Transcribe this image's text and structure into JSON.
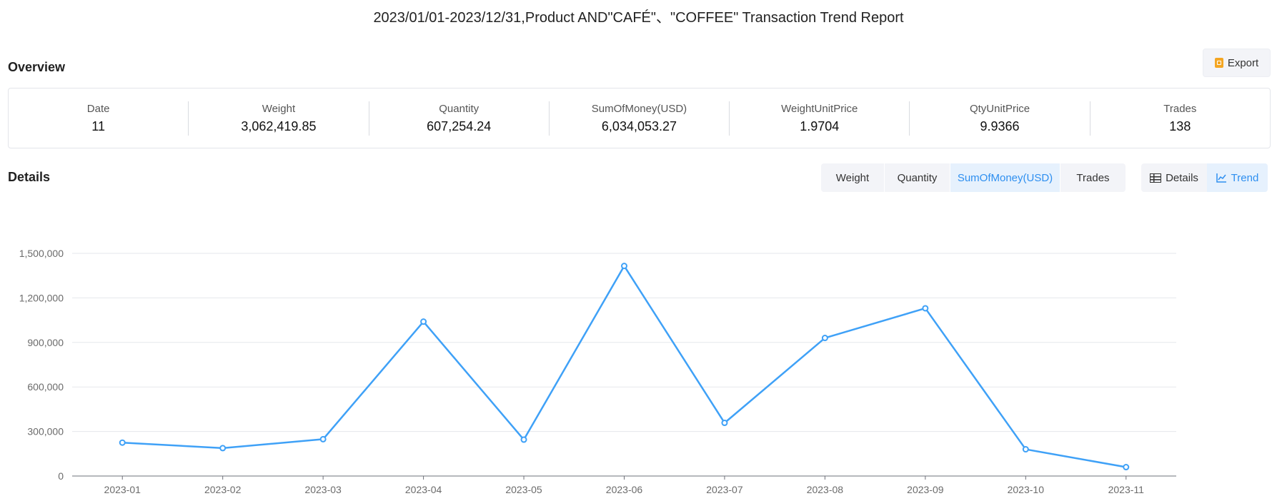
{
  "report": {
    "title": "2023/01/01-2023/12/31,Product AND\"CAFÉ\"、\"COFFEE\" Transaction Trend Report"
  },
  "overview": {
    "title": "Overview",
    "export_label": "Export",
    "export_icon": "document-export-icon",
    "stats": [
      {
        "label": "Date",
        "value": "11"
      },
      {
        "label": "Weight",
        "value": "3,062,419.85"
      },
      {
        "label": "Quantity",
        "value": "607,254.24"
      },
      {
        "label": "SumOfMoney(USD)",
        "value": "6,034,053.27"
      },
      {
        "label": "WeightUnitPrice",
        "value": "1.9704"
      },
      {
        "label": "QtyUnitPrice",
        "value": "9.9366"
      },
      {
        "label": "Trades",
        "value": "138"
      }
    ]
  },
  "details": {
    "title": "Details",
    "metric_tabs": [
      {
        "label": "Weight",
        "active": false
      },
      {
        "label": "Quantity",
        "active": false
      },
      {
        "label": "SumOfMoney(USD)",
        "active": true
      },
      {
        "label": "Trades",
        "active": false
      }
    ],
    "view_tabs": [
      {
        "label": "Details",
        "icon": "table-icon",
        "active": false
      },
      {
        "label": "Trend",
        "icon": "line-chart-icon",
        "active": true
      }
    ]
  },
  "chart_data": {
    "type": "line",
    "categories": [
      "2023-01",
      "2023-02",
      "2023-03",
      "2023-04",
      "2023-05",
      "2023-06",
      "2023-07",
      "2023-08",
      "2023-09",
      "2023-10",
      "2023-11"
    ],
    "series": [
      {
        "values": [
          225000,
          188000,
          248000,
          1040000,
          245000,
          1415000,
          358000,
          930000,
          1130000,
          180000,
          60000
        ]
      }
    ],
    "yticks": [
      "0",
      "300,000",
      "600,000",
      "900,000",
      "1,200,000",
      "1,500,000"
    ],
    "ylim": [
      0,
      1500000
    ],
    "grid": true,
    "line_color": "#3fa1f7"
  }
}
